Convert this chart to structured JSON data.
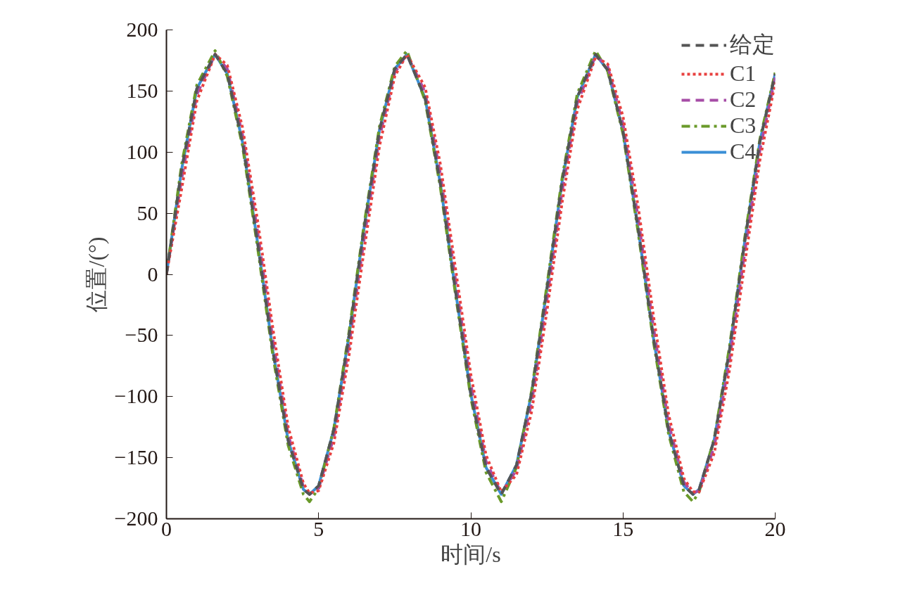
{
  "chart_data": {
    "type": "line",
    "xlabel": "时间/s",
    "ylabel": "位置/(°)",
    "x": [
      0,
      0.5,
      1,
      1.6,
      2,
      2.5,
      3,
      3.5,
      4,
      4.5,
      4.7,
      5,
      5.5,
      6,
      6.5,
      7,
      7.5,
      7.9,
      8.5,
      9,
      9.5,
      10,
      10.5,
      11,
      11.5,
      12,
      12.5,
      13,
      13.5,
      14.1,
      14.5,
      15,
      15.5,
      16,
      16.5,
      17,
      17.3,
      17.5,
      18,
      18.5,
      19,
      19.5,
      20
    ],
    "series": [
      {
        "name": "给定",
        "color": "#555555",
        "line_style": "dashed",
        "values": [
          0,
          86,
          152,
          180,
          164,
          108,
          25,
          -63,
          -136,
          -176,
          -180,
          -173,
          -127,
          -50,
          39,
          118,
          168,
          180,
          144,
          74,
          -14,
          -98,
          -158,
          -180,
          -156,
          -97,
          -12,
          76,
          145,
          180,
          167,
          117,
          37,
          -52,
          -128,
          -173,
          -180,
          -176,
          -135,
          -62,
          27,
          109,
          164
        ]
      },
      {
        "name": "C1",
        "color": "#e8403f",
        "line_style": "dotted",
        "values": [
          0,
          70,
          142,
          180,
          171,
          120,
          43,
          -45,
          -125,
          -171,
          -179,
          -177,
          -138,
          -66,
          21,
          105,
          162,
          180,
          153,
          90,
          4,
          -82,
          -148,
          -178,
          -164,
          -112,
          -30,
          59,
          135,
          178,
          172,
          129,
          55,
          -34,
          -115,
          -167,
          -178,
          -178,
          -146,
          -78,
          9,
          94,
          157
        ]
      },
      {
        "name": "C2",
        "color": "#a64ca6",
        "line_style": "dashed",
        "values": [
          0,
          78,
          147,
          180,
          168,
          114,
          34,
          -54,
          -131,
          -174,
          -180,
          -175,
          -133,
          -58,
          30,
          112,
          165,
          180,
          149,
          82,
          -5,
          -90,
          -153,
          -179,
          -160,
          -105,
          -21,
          68,
          140,
          179,
          170,
          123,
          46,
          -43,
          -122,
          -170,
          -179,
          -177,
          -141,
          -70,
          18,
          102,
          161
        ]
      },
      {
        "name": "C3",
        "color": "#6a9a2a",
        "line_style": "dashdot",
        "values": [
          0,
          90,
          155,
          183,
          162,
          105,
          21,
          -67,
          -140,
          -180,
          -186,
          -175,
          -126,
          -47,
          42,
          121,
          170,
          183,
          142,
          71,
          -17,
          -101,
          -162,
          -186,
          -158,
          -95,
          -9,
          79,
          148,
          183,
          166,
          115,
          34,
          -55,
          -131,
          -178,
          -186,
          -178,
          -134,
          -59,
          30,
          111,
          165
        ]
      },
      {
        "name": "C4",
        "color": "#3a8fd6",
        "line_style": "solid",
        "values": [
          0,
          86,
          152,
          180,
          164,
          108,
          25,
          -63,
          -136,
          -176,
          -180,
          -173,
          -127,
          -50,
          39,
          118,
          168,
          180,
          144,
          74,
          -14,
          -98,
          -158,
          -180,
          -156,
          -97,
          -12,
          76,
          145,
          180,
          167,
          117,
          37,
          -52,
          -128,
          -173,
          -180,
          -176,
          -135,
          -62,
          27,
          109,
          164
        ]
      }
    ],
    "xlim": [
      0,
      20
    ],
    "xticks": [
      0,
      5,
      10,
      15,
      20
    ],
    "ylim": [
      -200,
      200
    ],
    "yticks": [
      {
        "value": -200,
        "label": "−200"
      },
      {
        "value": -150,
        "label": "−150"
      },
      {
        "value": -100,
        "label": "−100"
      },
      {
        "value": -50,
        "label": "−50"
      },
      0,
      50,
      100,
      150,
      200
    ],
    "grid": false,
    "legend": "top right",
    "marker": "none"
  }
}
